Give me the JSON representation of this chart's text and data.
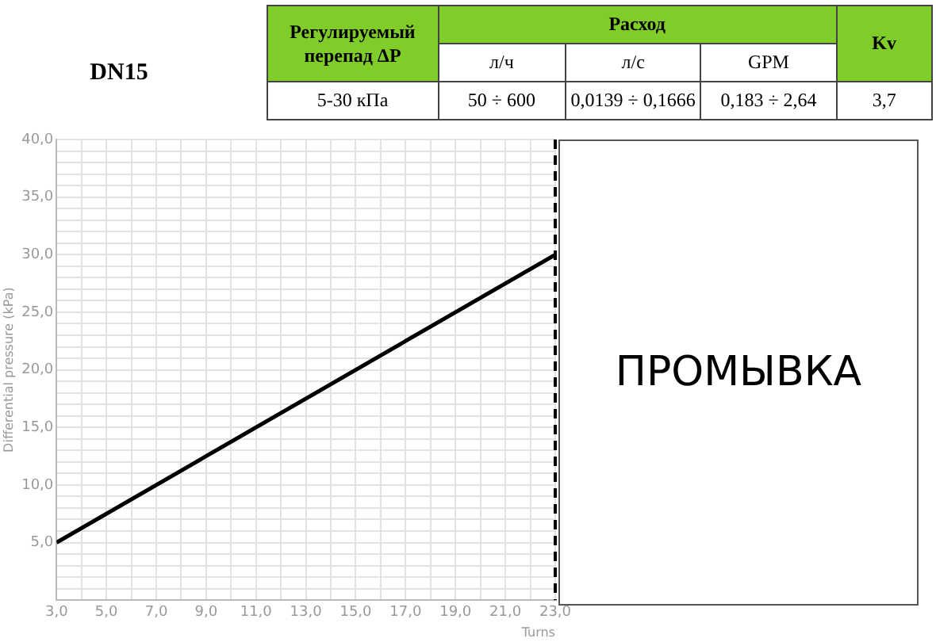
{
  "chart_data": {
    "type": "line",
    "title": "DN15",
    "xlabel": "Turns",
    "ylabel": "Differential pressure (kPa)",
    "annotations": [
      "ПРОМЫВКА",
      "Регулируемый перепад ΔP",
      "Расход",
      "Kv",
      "л/ч",
      "л/с",
      "GPM",
      "5-30 кПа",
      "50 ÷ 600",
      "0,0139 ÷ 0,1666",
      "0,183 ÷ 2,64",
      "3,7"
    ],
    "x": [
      3,
      23
    ],
    "series": [
      {
        "color": "#000000",
        "values": [
          5,
          30
        ]
      }
    ],
    "xlim": [
      3,
      23
    ],
    "xticks": [
      {
        "value": 3,
        "label": "3,0"
      },
      {
        "value": 4,
        "label": null
      },
      {
        "value": 5,
        "label": "5,0"
      },
      {
        "value": 6,
        "label": null
      },
      {
        "value": 7,
        "label": "7,0"
      },
      {
        "value": 8,
        "label": null
      },
      {
        "value": 9,
        "label": "9,0"
      },
      {
        "value": 10,
        "label": null
      },
      {
        "value": 11,
        "label": "11,0"
      },
      {
        "value": 12,
        "label": null
      },
      {
        "value": 13,
        "label": "13,0"
      },
      {
        "value": 14,
        "label": null
      },
      {
        "value": 15,
        "label": "15,0"
      },
      {
        "value": 16,
        "label": null
      },
      {
        "value": 17,
        "label": "17,0"
      },
      {
        "value": 18,
        "label": null
      },
      {
        "value": 19,
        "label": "19,0"
      },
      {
        "value": 20,
        "label": null
      },
      {
        "value": 21,
        "label": "21,0"
      },
      {
        "value": 22,
        "label": null
      },
      {
        "value": 23,
        "label": "23,0"
      }
    ],
    "ylim": [
      0,
      40
    ],
    "yticks": [
      {
        "value": 0,
        "label": null
      },
      {
        "value": 1,
        "label": null
      },
      {
        "value": 2,
        "label": null
      },
      {
        "value": 3,
        "label": null
      },
      {
        "value": 4,
        "label": null
      },
      {
        "value": 5,
        "label": "5,0"
      },
      {
        "value": 6,
        "label": null
      },
      {
        "value": 7,
        "label": null
      },
      {
        "value": 8,
        "label": null
      },
      {
        "value": 9,
        "label": null
      },
      {
        "value": 10,
        "label": "10,0"
      },
      {
        "value": 11,
        "label": null
      },
      {
        "value": 12,
        "label": null
      },
      {
        "value": 13,
        "label": null
      },
      {
        "value": 14,
        "label": null
      },
      {
        "value": 15,
        "label": "15,0"
      },
      {
        "value": 16,
        "label": null
      },
      {
        "value": 17,
        "label": null
      },
      {
        "value": 18,
        "label": null
      },
      {
        "value": 19,
        "label": null
      },
      {
        "value": 20,
        "label": "20,0"
      },
      {
        "value": 21,
        "label": null
      },
      {
        "value": 22,
        "label": null
      },
      {
        "value": 23,
        "label": null
      },
      {
        "value": 24,
        "label": null
      },
      {
        "value": 25,
        "label": "25,0"
      },
      {
        "value": 26,
        "label": null
      },
      {
        "value": 27,
        "label": null
      },
      {
        "value": 28,
        "label": null
      },
      {
        "value": 29,
        "label": null
      },
      {
        "value": 30,
        "label": "30,0"
      },
      {
        "value": 31,
        "label": null
      },
      {
        "value": 32,
        "label": null
      },
      {
        "value": 33,
        "label": null
      },
      {
        "value": 34,
        "label": null
      },
      {
        "value": 35,
        "label": "35,0"
      },
      {
        "value": 36,
        "label": null
      },
      {
        "value": 37,
        "label": null
      },
      {
        "value": 38,
        "label": null
      },
      {
        "value": 39,
        "label": null
      },
      {
        "value": 40,
        "label": "40,0"
      }
    ],
    "ref_lines": [
      {
        "axis": "x",
        "value": 23,
        "color": "#000000",
        "line_style": "dashed"
      }
    ],
    "grid": true,
    "legend": false,
    "marker": "none",
    "line_style": "solid"
  }
}
